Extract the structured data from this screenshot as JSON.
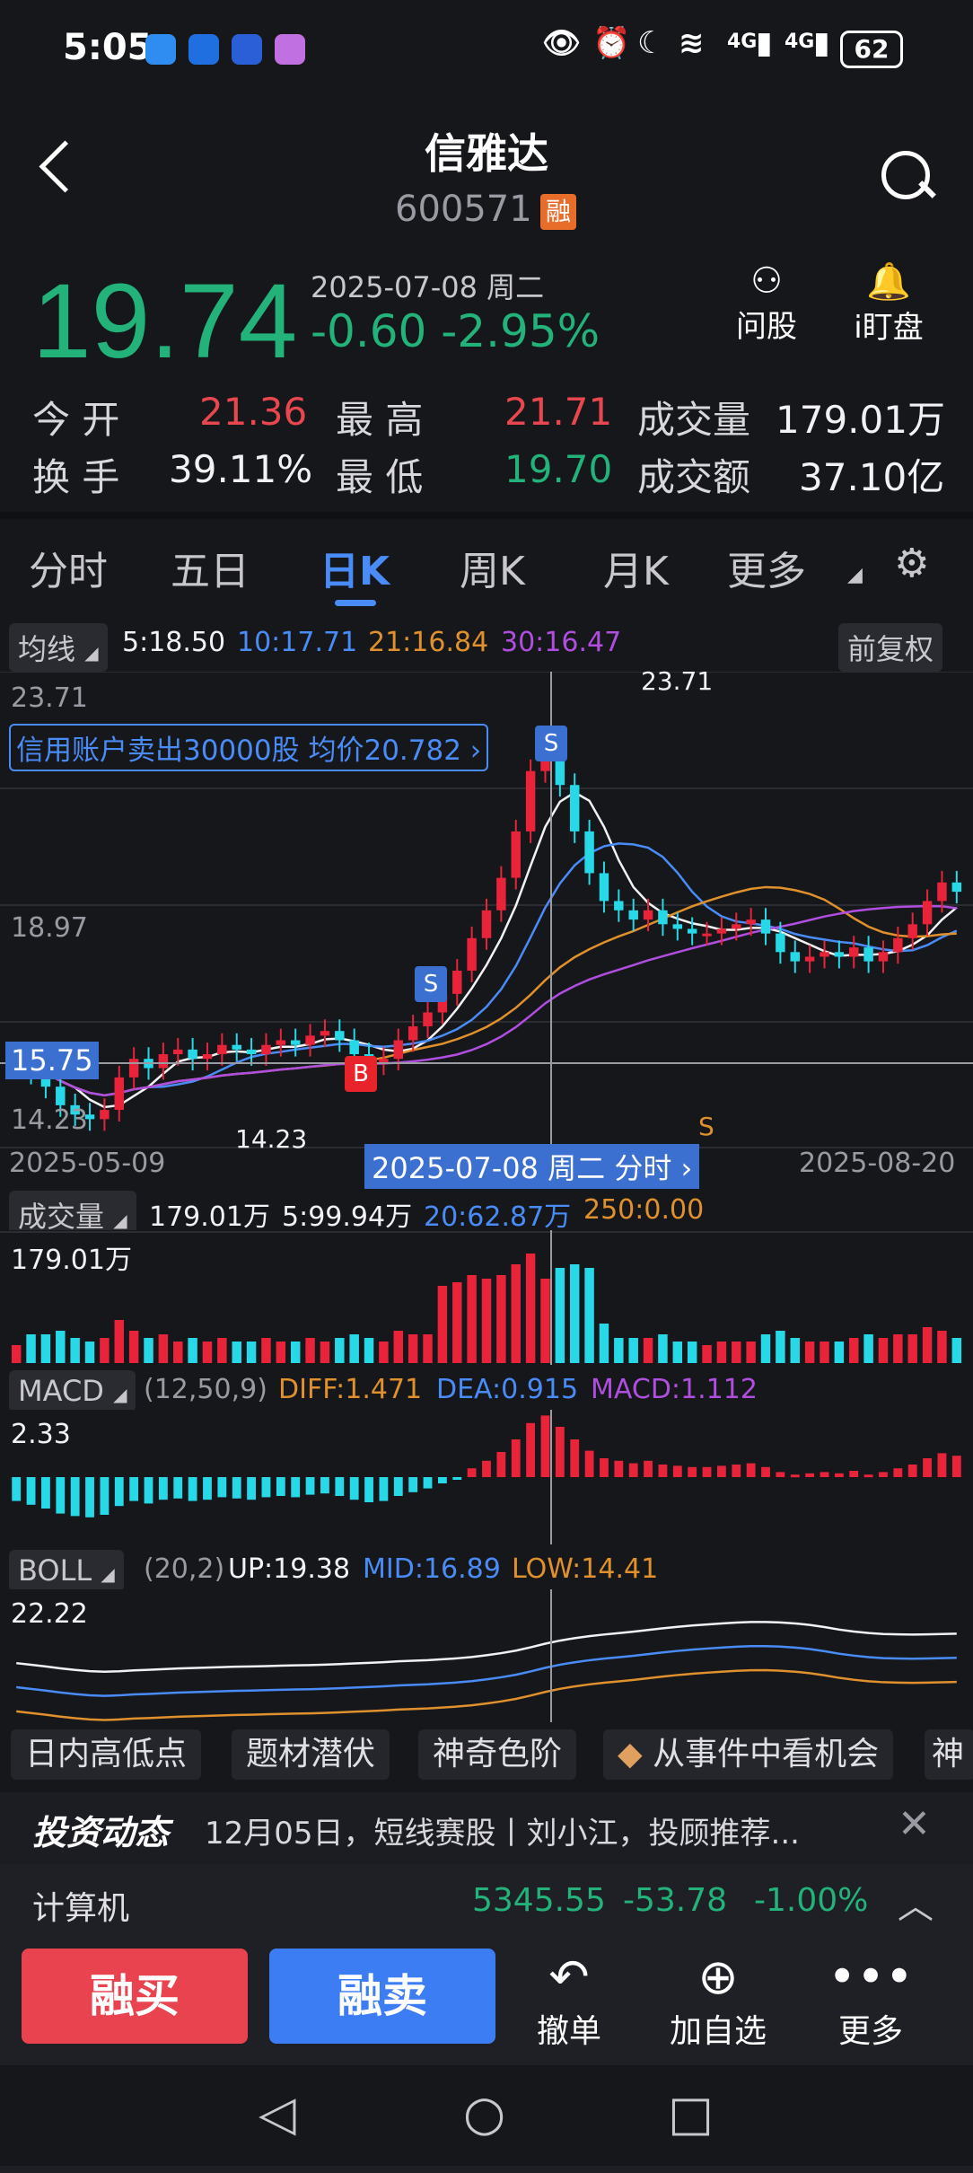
{
  "status_bar": {
    "time": "5:05",
    "battery": "62",
    "signal_labels": [
      "4G",
      "4G"
    ]
  },
  "header": {
    "title": "信雅达",
    "code": "600571",
    "badge": "融"
  },
  "quote": {
    "price": "19.74",
    "date": "2025-07-08 周二",
    "change": "-0.60",
    "change_pct": "-2.95%",
    "ask_label": "问股",
    "watch_label": "i盯盘",
    "stats": [
      {
        "label": "今 开",
        "value": "21.36",
        "color": "#e8474f"
      },
      {
        "label": "最 高",
        "value": "21.71",
        "color": "#e8474f"
      },
      {
        "label": "成交量",
        "value": "179.01万",
        "color": "#f2f2f4"
      },
      {
        "label": "换 手",
        "value": "39.11%",
        "color": "#f2f2f4"
      },
      {
        "label": "最 低",
        "value": "19.70",
        "color": "#23b27a"
      },
      {
        "label": "成交额",
        "value": "37.10亿",
        "color": "#f2f2f4"
      }
    ]
  },
  "tabs": [
    "分时",
    "五日",
    "日K",
    "周K",
    "月K",
    "更多"
  ],
  "active_tab": "日K",
  "ma_legend": {
    "chip": "均线",
    "ma5": "5:18.50",
    "ma10": "10:17.71",
    "ma21": "21:16.84",
    "ma30": "30:16.47",
    "adjust": "前复权"
  },
  "kline": {
    "y_high": "23.71",
    "y_mid": "18.97",
    "y_cross": "15.75",
    "y_low": "14.23",
    "max_marker": "23.71",
    "min_marker": "14.23",
    "credit_note": "信用账户卖出30000股 均价20.782 ›",
    "date_left": "2025-05-09",
    "date_center": "2025-07-08 周二 分时 ›",
    "date_right": "2025-08-20",
    "signal_s": "S",
    "signal_b": "B"
  },
  "volume": {
    "chip": "成交量",
    "v": "179.01万",
    "ma5": "5:99.94万",
    "ma20": "20:62.87万",
    "ma250": "250:0.00",
    "scale": "179.01万"
  },
  "macd": {
    "chip": "MACD",
    "params": "(12,50,9)",
    "diff": "DIFF:1.471",
    "dea": "DEA:0.915",
    "macd": "MACD:1.112",
    "scale": "2.33"
  },
  "boll": {
    "chip": "BOLL",
    "params": "(20,2)",
    "up": "UP:19.38",
    "mid": "MID:16.89",
    "low": "LOW:14.41",
    "scale": "22.22"
  },
  "features": [
    "日内高低点",
    "题材潜伏",
    "神奇色阶",
    "从事件中看机会",
    "神"
  ],
  "news": {
    "brand": "投资动态",
    "text": "12月05日，短线赛股丨刘小江，投顾推荐..."
  },
  "index_bar": {
    "name": "计算机",
    "value": "5345.55",
    "change": "-53.78",
    "pct": "-1.00%"
  },
  "bottom": {
    "buy": "融买",
    "sell": "融卖",
    "cancel": "撤单",
    "add": "加自选",
    "more": "更多"
  },
  "chart_data": {
    "type": "candlestick",
    "title": "",
    "y_range": [
      14.23,
      23.71
    ],
    "x_start": "2025-05-09",
    "x_end": "2025-08-20",
    "selected_date": "2025-07-08",
    "closes": [
      15.6,
      15.3,
      15.0,
      14.6,
      14.4,
      14.3,
      14.5,
      15.2,
      15.6,
      15.4,
      15.7,
      15.8,
      15.6,
      15.7,
      15.9,
      15.8,
      15.7,
      15.9,
      16.0,
      15.9,
      16.1,
      16.2,
      16.0,
      15.7,
      15.5,
      15.6,
      16.0,
      16.3,
      16.6,
      17.0,
      17.5,
      18.2,
      18.8,
      19.5,
      20.5,
      21.8,
      22.4,
      21.5,
      20.5,
      19.6,
      19.0,
      18.8,
      18.6,
      18.8,
      18.5,
      18.4,
      18.3,
      18.3,
      18.4,
      18.5,
      18.6,
      18.3,
      17.9,
      17.7,
      17.8,
      17.9,
      17.8,
      18.0,
      17.7,
      17.9,
      18.2,
      18.5,
      19.0,
      19.4,
      19.2
    ]
  }
}
